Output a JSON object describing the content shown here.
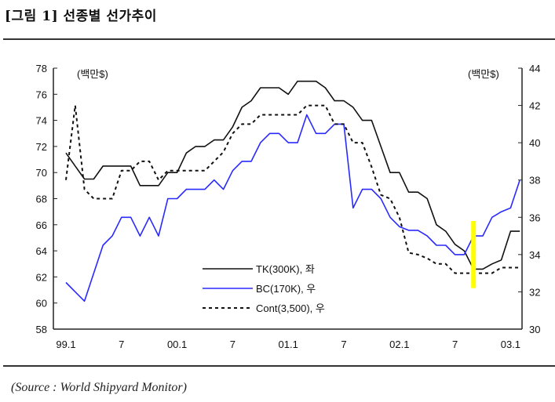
{
  "title": "[그림 1] 선종별 선가추이",
  "source": "(Source : World Shipyard Monitor)",
  "chart_data": {
    "type": "line",
    "title": "선종별 선가추이",
    "left_unit_label": "(백만$)",
    "right_unit_label": "(백만$)",
    "x_tick_labels": [
      "99.1",
      "7",
      "00.1",
      "7",
      "01.1",
      "7",
      "02.1",
      "7",
      "03.1"
    ],
    "x_tick_month_index": [
      0,
      6,
      12,
      18,
      24,
      30,
      36,
      42,
      48
    ],
    "x_start": "1999-01",
    "x_frequency": "monthly",
    "ylim_left": [
      58,
      78
    ],
    "yticks_left": [
      "58",
      "60",
      "62",
      "64",
      "66",
      "68",
      "70",
      "72",
      "74",
      "76",
      "78"
    ],
    "ylim_right": [
      30,
      44
    ],
    "yticks_right": [
      "30",
      "32",
      "34",
      "36",
      "38",
      "40",
      "42",
      "44"
    ],
    "grid": false,
    "legend_placement": "bottom-center",
    "series": [
      {
        "name": "TK(300K), 좌",
        "axis": "left",
        "color": "#111111",
        "style": "solid",
        "values": [
          71.5,
          70.5,
          69.5,
          69.5,
          70.5,
          70.5,
          70.5,
          70.5,
          69,
          69,
          69,
          70,
          70,
          71.5,
          72,
          72,
          72.5,
          72.5,
          73.5,
          75,
          75.5,
          76.5,
          76.5,
          76.5,
          76,
          77,
          77,
          77,
          76.5,
          75.5,
          75.5,
          75,
          74,
          74,
          72,
          70,
          70,
          68.5,
          68.5,
          68,
          66,
          65.5,
          64.5,
          64,
          62.6,
          62.6,
          63,
          63.3,
          65.5,
          65.5
        ]
      },
      {
        "name": "BC(170K), 우",
        "axis": "right",
        "color": "#2a2aff",
        "style": "solid",
        "values": [
          32.5,
          32,
          31.5,
          33,
          34.5,
          35,
          36,
          36,
          35,
          36,
          35,
          37,
          37,
          37.5,
          37.5,
          37.5,
          38,
          37.5,
          38.5,
          39,
          39,
          40,
          40.5,
          40.5,
          40,
          40,
          41.5,
          40.5,
          40.5,
          41,
          41,
          36.5,
          37.5,
          37.5,
          37,
          36,
          35.5,
          35.3,
          35.3,
          35,
          34.5,
          34.5,
          34,
          34,
          35,
          35,
          36,
          36.3,
          36.5,
          38
        ]
      },
      {
        "name": "Cont(3,500), 우",
        "axis": "right",
        "color": "#111111",
        "style": "dashed",
        "values": [
          38,
          42,
          37.5,
          37,
          37,
          37,
          38.5,
          38.5,
          39,
          39,
          38,
          38.5,
          38.5,
          38.5,
          38.5,
          38.5,
          39,
          39.5,
          40.5,
          41,
          41,
          41.5,
          41.5,
          41.5,
          41.5,
          41.5,
          42,
          42,
          42,
          41,
          41,
          40,
          40,
          38.7,
          37.2,
          37,
          36,
          34.1,
          34,
          33.8,
          33.5,
          33.5,
          33,
          33,
          33,
          33,
          33,
          33.3,
          33.3,
          33.3
        ]
      }
    ],
    "annotations": [
      {
        "type": "highlight-bar",
        "color": "#ffff00",
        "month_index": 44,
        "axis": "right",
        "range": [
          32.2,
          35.8
        ]
      }
    ]
  }
}
